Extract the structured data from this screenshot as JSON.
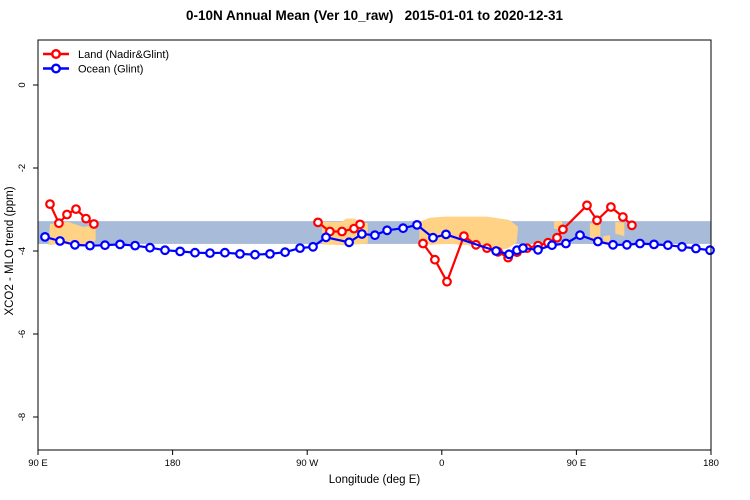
{
  "title": "0-10N Annual Mean (Ver 10_raw)   2015-01-01 to 2020-12-31",
  "legend": {
    "items": [
      {
        "label": "Land (Nadir&Glint)",
        "color": "#ff0000"
      },
      {
        "label": "Ocean (Glint)",
        "color": "#0000ff"
      }
    ]
  },
  "chart_data": {
    "type": "line",
    "title": "0-10N Annual Mean (Ver 10_raw)   2015-01-01 to 2020-12-31",
    "xlabel": "Longitude (deg E)",
    "ylabel": "XCO2 - MLO trend (ppm)",
    "x_axis_note": "axis runs eastward from 90E and wraps: 90E,180,90W,0,90E,180; positions given in degrees east of left edge (0-450)",
    "x_ticks": [
      {
        "d": 0,
        "label": "90 E"
      },
      {
        "d": 90,
        "label": "180"
      },
      {
        "d": 180,
        "label": "90 W"
      },
      {
        "d": 270,
        "label": "0"
      },
      {
        "d": 360,
        "label": "90 E"
      },
      {
        "d": 450,
        "label": "180"
      }
    ],
    "y_ticks": [
      {
        "v": 0,
        "label": "0"
      },
      {
        "v": -2,
        "label": "-2"
      },
      {
        "v": -4,
        "label": "-4"
      },
      {
        "v": -6,
        "label": "-6"
      },
      {
        "v": -8,
        "label": "-8"
      }
    ],
    "ylim": [
      -8.8,
      1.1
    ],
    "grid": false,
    "legend_position": "top-left-inside",
    "bands": {
      "ocean_band": {
        "color": "#a8bcd9",
        "ppm_top": -3.28,
        "ppm_bottom": -3.83,
        "d_start": 0,
        "d_end": 450
      },
      "land_patches": {
        "color": "#ffd285",
        "polygons": [
          [
            [
              8,
              -3.35
            ],
            [
              20,
              -3.3
            ],
            [
              30,
              -3.42
            ],
            [
              38.5,
              -3.38
            ],
            [
              38.5,
              -3.75
            ],
            [
              29,
              -3.9
            ],
            [
              16,
              -3.82
            ],
            [
              7,
              -3.86
            ]
          ],
          [
            [
              190,
              -3.3
            ],
            [
              203,
              -3.3
            ],
            [
              206,
              -3.22
            ],
            [
              212,
              -3.22
            ],
            [
              214,
              -3.3
            ],
            [
              220.5,
              -3.33
            ],
            [
              220.5,
              -3.82
            ],
            [
              205,
              -3.86
            ],
            [
              190,
              -3.84
            ]
          ],
          [
            [
              255,
              -3.3
            ],
            [
              262,
              -3.2
            ],
            [
              272,
              -3.17
            ],
            [
              300,
              -3.17
            ],
            [
              315,
              -3.25
            ],
            [
              321,
              -3.42
            ],
            [
              320,
              -3.8
            ],
            [
              314,
              -3.94
            ],
            [
              306,
              -3.98
            ],
            [
              295,
              -3.88
            ],
            [
              275,
              -3.83
            ],
            [
              262,
              -3.85
            ],
            [
              255,
              -3.72
            ]
          ],
          [
            [
              345,
              -3.28
            ],
            [
              350.5,
              -3.28
            ],
            [
              350.5,
              -3.5
            ],
            [
              345,
              -3.46
            ]
          ],
          [
            [
              369,
              -3.33
            ],
            [
              376,
              -3.33
            ],
            [
              376,
              -3.76
            ],
            [
              369,
              -3.72
            ]
          ],
          [
            [
              378,
              -3.64
            ],
            [
              382.5,
              -3.62
            ],
            [
              382.5,
              -3.8
            ],
            [
              378,
              -3.8
            ]
          ],
          [
            [
              386,
              -3.3
            ],
            [
              392,
              -3.32
            ],
            [
              392,
              -3.64
            ],
            [
              386,
              -3.58
            ]
          ],
          [
            [
              394,
              -3.28
            ],
            [
              398.5,
              -3.28
            ],
            [
              398.5,
              -3.47
            ],
            [
              394,
              -3.44
            ]
          ]
        ]
      }
    },
    "series": [
      {
        "name": "Land (Nadir&Glint)",
        "color": "#ff0000",
        "marker": "open-circle",
        "segments": [
          [
            [
              8,
              -2.87
            ],
            [
              14,
              -3.33
            ],
            [
              19.4,
              -3.12
            ],
            [
              25.4,
              -2.99
            ],
            [
              32.1,
              -3.22
            ],
            [
              37.4,
              -3.35
            ]
          ],
          [
            [
              187.2,
              -3.31
            ],
            [
              195.2,
              -3.53
            ],
            [
              203.3,
              -3.53
            ],
            [
              211.3,
              -3.46
            ],
            [
              215.3,
              -3.36
            ]
          ],
          [
            [
              257.4,
              -3.82
            ],
            [
              265.4,
              -4.21
            ],
            [
              273.5,
              -4.74
            ],
            [
              284.8,
              -3.64
            ],
            [
              292.9,
              -3.85
            ],
            [
              300.2,
              -3.93
            ],
            [
              307.6,
              -4.02
            ],
            [
              314.3,
              -4.16
            ],
            [
              320.3,
              -4.03
            ],
            [
              327,
              -3.93
            ],
            [
              334.3,
              -3.87
            ],
            [
              341,
              -3.8
            ],
            [
              347,
              -3.68
            ],
            [
              351,
              -3.48
            ],
            [
              367.1,
              -2.9
            ],
            [
              373.8,
              -3.26
            ],
            [
              383.1,
              -2.94
            ],
            [
              391.1,
              -3.18
            ],
            [
              397.1,
              -3.38
            ]
          ]
        ]
      },
      {
        "name": "Ocean (Glint)",
        "color": "#0000ff",
        "marker": "open-circle",
        "segments": [
          [
            [
              4.7,
              -3.66
            ],
            [
              14.7,
              -3.76
            ],
            [
              24.7,
              -3.85
            ],
            [
              34.8,
              -3.87
            ],
            [
              44.8,
              -3.86
            ],
            [
              54.8,
              -3.84
            ],
            [
              64.9,
              -3.87
            ],
            [
              74.9,
              -3.92
            ],
            [
              84.9,
              -3.98
            ],
            [
              95,
              -4.01
            ],
            [
              105,
              -4.04
            ],
            [
              115,
              -4.05
            ],
            [
              125,
              -4.04
            ],
            [
              135.1,
              -4.07
            ],
            [
              145.1,
              -4.09
            ],
            [
              155.1,
              -4.07
            ],
            [
              165.2,
              -4.03
            ],
            [
              175.2,
              -3.93
            ],
            [
              183.9,
              -3.9
            ],
            [
              192.6,
              -3.67
            ],
            [
              208,
              -3.79
            ],
            [
              216.6,
              -3.59
            ],
            [
              225.3,
              -3.62
            ],
            [
              233.4,
              -3.5
            ],
            [
              244.1,
              -3.45
            ],
            [
              253.4,
              -3.37
            ],
            [
              264.1,
              -3.68
            ],
            [
              272.8,
              -3.6
            ],
            [
              306.3,
              -4.0
            ],
            [
              315,
              -4.08
            ],
            [
              320.3,
              -3.98
            ],
            [
              324.3,
              -3.93
            ],
            [
              334.3,
              -3.97
            ],
            [
              343.7,
              -3.86
            ],
            [
              353,
              -3.82
            ],
            [
              362.4,
              -3.62
            ],
            [
              374.4,
              -3.77
            ],
            [
              384.5,
              -3.85
            ],
            [
              393.8,
              -3.85
            ],
            [
              402.5,
              -3.82
            ],
            [
              411.9,
              -3.84
            ],
            [
              421.2,
              -3.86
            ],
            [
              430.6,
              -3.9
            ],
            [
              439.9,
              -3.94
            ],
            [
              449.3,
              -3.98
            ]
          ]
        ]
      }
    ]
  }
}
